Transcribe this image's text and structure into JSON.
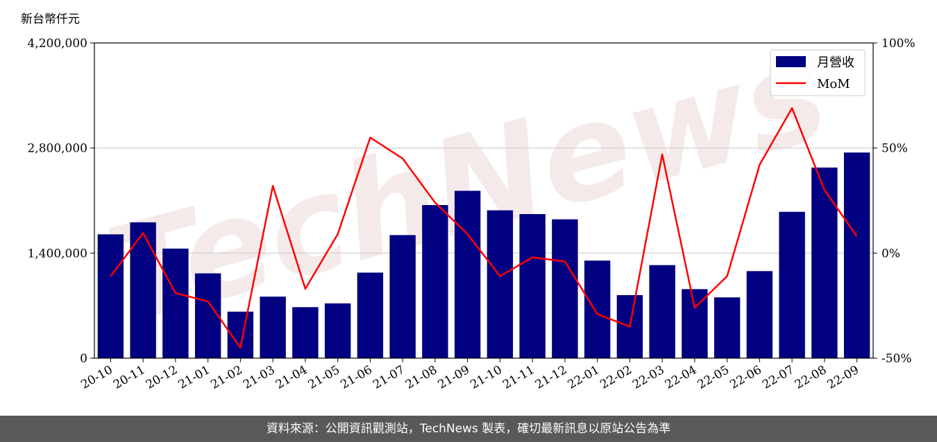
{
  "chart_data": {
    "type": "bar",
    "unit_label": "新台幣仟元",
    "categories": [
      "20-10",
      "20-11",
      "20-12",
      "21-01",
      "21-02",
      "21-03",
      "21-04",
      "21-05",
      "21-06",
      "21-07",
      "21-08",
      "21-09",
      "21-10",
      "21-11",
      "21-12",
      "22-01",
      "22-02",
      "22-03",
      "22-04",
      "22-05",
      "22-06",
      "22-07",
      "22-08",
      "22-09"
    ],
    "series": [
      {
        "name": "月營收",
        "type": "bar",
        "axis": "left",
        "color": "#000080",
        "values": [
          1650000,
          1810000,
          1460000,
          1130000,
          620000,
          820000,
          680000,
          730000,
          1140000,
          1640000,
          2040000,
          2230000,
          1970000,
          1920000,
          1850000,
          1300000,
          840000,
          1240000,
          920000,
          810000,
          1160000,
          1950000,
          2540000,
          2740000
        ]
      },
      {
        "name": "MoM",
        "type": "line",
        "axis": "right",
        "color": "#ff0000",
        "values": [
          -11,
          9.5,
          -19,
          -23,
          -45,
          32,
          -17,
          9,
          55,
          45,
          24,
          9,
          -11,
          -2,
          -4,
          -29,
          -35,
          47,
          -26,
          -11,
          42,
          69,
          30,
          8
        ]
      }
    ],
    "y_left": {
      "min": 0,
      "max": 4200000,
      "ticks": [
        "0",
        "1,400,000",
        "2,800,000",
        "4,200,000"
      ]
    },
    "y_right": {
      "min": -50,
      "max": 100,
      "ticks": [
        "-50%",
        "0%",
        "50%",
        "100%"
      ]
    },
    "grid": "horizontal",
    "legend_position": "top-right",
    "watermark": "TechNews"
  },
  "footer": {
    "text": "資料來源：公開資訊觀測站，TechNews 製表，確切最新訊息以原站公告為準"
  }
}
